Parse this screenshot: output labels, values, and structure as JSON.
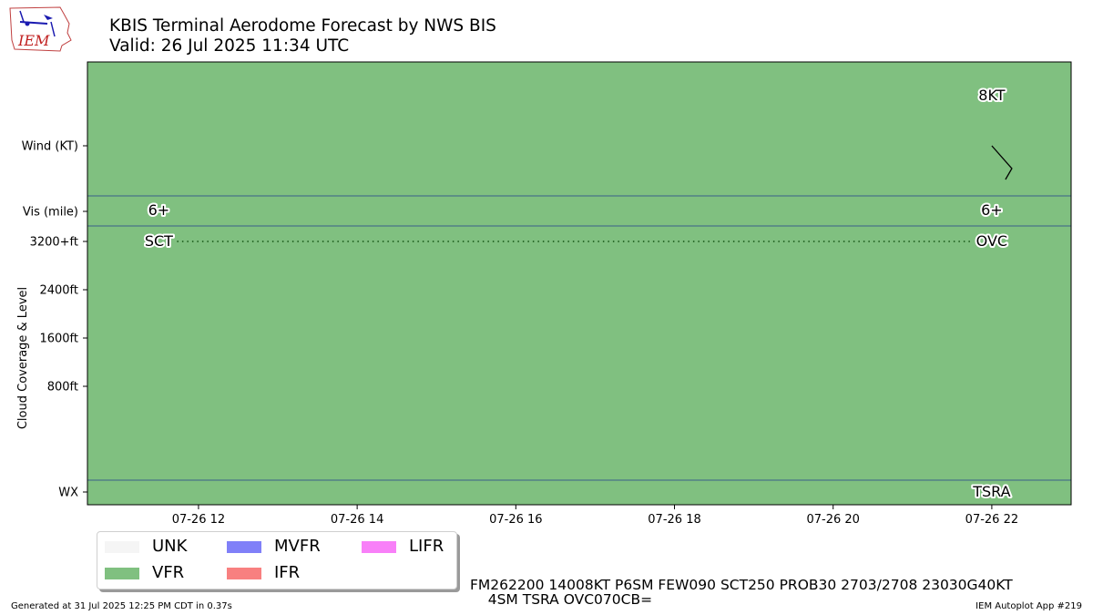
{
  "header": {
    "title_line1": "KBIS Terminal Aerodome Forecast by NWS BIS",
    "title_line2": "Valid: 26 Jul 2025 11:34 UTC"
  },
  "logo": {
    "text": "IEM"
  },
  "chart_data": {
    "type": "timeline",
    "xaxis": {
      "ticks": [
        "07-26 12",
        "07-26 14",
        "07-26 16",
        "07-26 18",
        "07-26 20",
        "07-26 22"
      ],
      "range_hours": [
        10.6,
        23.0
      ]
    },
    "ylabel": "Cloud Coverage & Level",
    "rows": {
      "wind": {
        "label": "Wind (KT)",
        "annotations": [
          {
            "hour": 22.0,
            "text": "8KT",
            "direction_deg": 140,
            "speed_kt": 8
          }
        ]
      },
      "vis": {
        "label": "Vis (mile)",
        "annotations": [
          {
            "hour": 11.5,
            "text": "6+"
          },
          {
            "hour": 22.0,
            "text": "6+"
          }
        ]
      },
      "cloud": {
        "ticks": [
          "3200+ft",
          "2400ft",
          "1600ft",
          "800ft"
        ],
        "tick_values_ft": [
          3200,
          2400,
          1600,
          800
        ],
        "range_ft": [
          -800,
          3200
        ],
        "layers": [
          {
            "hour": 11.5,
            "text": "SCT",
            "level_ft": 3200
          },
          {
            "hour": 22.0,
            "text": "OVC",
            "level_ft": 3200
          }
        ]
      },
      "wx": {
        "label": "WX",
        "annotations": [
          {
            "hour": 22.0,
            "text": "TSRA"
          }
        ]
      }
    },
    "background_category": "VFR",
    "legend": [
      {
        "label": "UNK",
        "color": "#f5f5f5"
      },
      {
        "label": "VFR",
        "color": "#80c080"
      },
      {
        "label": "MVFR",
        "color": "#8080f8"
      },
      {
        "label": "IFR",
        "color": "#f88080"
      },
      {
        "label": "LIFR",
        "color": "#f880f8"
      }
    ],
    "colors": {
      "plot_bg": "#80c080",
      "divider": "#3a5f8a",
      "dotted": "#2e6e2e"
    }
  },
  "taf": {
    "line1": "FM262200 14008KT P6SM FEW090 SCT250 PROB30 2703/2708 23030G40KT",
    "line2": "4SM TSRA OVC070CB="
  },
  "footer": {
    "generated": "Generated at 31 Jul 2025 12:25 PM CDT in 0.37s",
    "app": "IEM Autoplot App #219"
  }
}
